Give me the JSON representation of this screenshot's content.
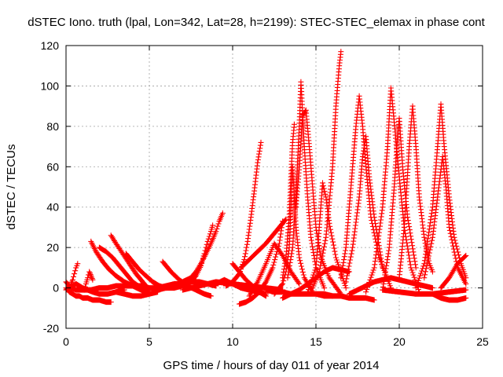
{
  "chart_data": {
    "type": "scatter",
    "title": "dSTEC Iono. truth (lpal, Lon=342, Lat=28, h=2199): STEC-STEC_elemax in phase cont",
    "xlabel": "GPS time / hours of day 011 of year 2014",
    "ylabel": "dSTEC  / TECUs",
    "xlim": [
      0,
      25
    ],
    "ylim": [
      -20,
      120
    ],
    "xticks": [
      0,
      5,
      10,
      15,
      20,
      25
    ],
    "yticks": [
      -20,
      0,
      20,
      40,
      60,
      80,
      100,
      120
    ],
    "grid": true,
    "marker": "plus",
    "color": "#ff0000",
    "series": [
      {
        "x": [
          0.0,
          0.2,
          0.4,
          0.6,
          0.8,
          1.0,
          1.3,
          1.6,
          2.0,
          2.4,
          2.7
        ],
        "values": [
          0,
          -2,
          -3,
          -4,
          -4,
          -5,
          -5,
          -6,
          -6,
          -7,
          -7
        ]
      },
      {
        "x": [
          0.0,
          0.3,
          0.6,
          1.0,
          1.5,
          2.0,
          2.5,
          3.0,
          3.5,
          4.0,
          4.5,
          5.0,
          5.5,
          6.0,
          6.5,
          7.0,
          7.5,
          8.0,
          8.5,
          9.0
        ],
        "values": [
          3,
          0,
          -1,
          -1,
          -1,
          0,
          0,
          1,
          1,
          1,
          1,
          0,
          0,
          1,
          2,
          2,
          3,
          3,
          2,
          1
        ]
      },
      {
        "x": [
          0.0,
          0.2,
          0.4,
          0.6,
          0.8,
          1.0,
          1.3,
          1.6,
          2.0,
          2.5,
          3.0,
          3.5
        ],
        "values": [
          -1,
          0,
          1,
          2,
          1,
          0,
          -1,
          -2,
          -3,
          -3,
          -2,
          -1
        ]
      },
      {
        "x": [
          0.3,
          0.4,
          0.5,
          0.6,
          0.7
        ],
        "values": [
          2,
          4,
          7,
          10,
          12
        ]
      },
      {
        "x": [
          1.1,
          1.2,
          1.3,
          1.4,
          1.5,
          1.6
        ],
        "values": [
          -1,
          2,
          5,
          8,
          6,
          4
        ]
      },
      {
        "x": [
          1.5,
          1.8,
          2.2,
          2.6,
          3.0,
          3.5,
          4.0,
          4.5,
          5.0
        ],
        "values": [
          23,
          18,
          13,
          9,
          6,
          3,
          1,
          -1,
          -3
        ]
      },
      {
        "x": [
          2.0,
          2.4,
          2.8,
          3.2,
          3.6,
          4.0,
          4.5,
          5.0
        ],
        "values": [
          20,
          18,
          15,
          11,
          7,
          3,
          0,
          -2
        ]
      },
      {
        "x": [
          2.7,
          3.0,
          3.4,
          3.8,
          4.2,
          4.6,
          5.0
        ],
        "values": [
          26,
          22,
          17,
          12,
          7,
          3,
          -1
        ]
      },
      {
        "x": [
          3.6,
          4.0,
          4.4,
          4.8,
          5.2,
          5.6,
          6.0,
          6.5
        ],
        "values": [
          17,
          13,
          9,
          6,
          3,
          1,
          0,
          0
        ]
      },
      {
        "x": [
          3.0,
          3.5,
          4.0,
          4.5,
          5.0,
          5.5
        ],
        "values": [
          -2,
          -3,
          -4,
          -4,
          -3,
          -2
        ]
      },
      {
        "x": [
          5.8,
          6.3,
          6.8,
          7.3,
          7.8,
          8.3,
          8.7
        ],
        "values": [
          13,
          8,
          4,
          1,
          -1,
          -3,
          -4
        ]
      },
      {
        "x": [
          5.5,
          6.0,
          6.5,
          7.0,
          7.5,
          7.8,
          8.1,
          8.4,
          8.7,
          9.0,
          9.2,
          9.4
        ],
        "values": [
          -1,
          0,
          1,
          3,
          5,
          8,
          12,
          17,
          22,
          28,
          33,
          37
        ]
      },
      {
        "x": [
          6.5,
          7.0,
          7.5,
          7.8,
          8.1,
          8.3,
          8.5,
          8.7,
          8.8
        ],
        "values": [
          0,
          1,
          3,
          6,
          11,
          17,
          23,
          28,
          31
        ]
      },
      {
        "x": [
          7.0,
          8.0,
          9.0,
          10.0,
          11.0,
          12.0,
          13.0
        ],
        "values": [
          -1,
          1,
          3,
          2,
          1,
          0,
          -1
        ]
      },
      {
        "x": [
          9.0,
          9.5,
          10.0,
          10.5,
          11.0,
          11.5,
          12.0
        ],
        "values": [
          2,
          4,
          2,
          0,
          -1,
          -2,
          -3
        ]
      },
      {
        "x": [
          9.6,
          10.0,
          10.4,
          10.7,
          10.9,
          11.1,
          11.3,
          11.5,
          11.7
        ],
        "values": [
          1,
          3,
          7,
          14,
          23,
          35,
          48,
          62,
          72
        ]
      },
      {
        "x": [
          10.0,
          10.4,
          10.8,
          11.2,
          11.6,
          12.0
        ],
        "values": [
          12,
          8,
          4,
          1,
          -2,
          -4
        ]
      },
      {
        "x": [
          10.4,
          10.8,
          11.2,
          11.6,
          12.0,
          12.4,
          12.8,
          13.0
        ],
        "values": [
          -8,
          -7,
          -5,
          -2,
          3,
          10,
          22,
          33
        ]
      },
      {
        "x": [
          10.5,
          11.0,
          11.5,
          12.0,
          12.5,
          13.0,
          13.2
        ],
        "values": [
          10,
          14,
          18,
          22,
          27,
          32,
          34
        ]
      },
      {
        "x": [
          11.0,
          11.5,
          12.0,
          12.5,
          13.0,
          13.5,
          14.0
        ],
        "values": [
          -4,
          3,
          12,
          22,
          16,
          8,
          2
        ]
      },
      {
        "x": [
          12.0,
          12.5,
          13.0,
          13.5,
          14.0,
          14.5,
          15.0,
          15.5,
          16.0
        ],
        "values": [
          -1,
          -2,
          -2,
          -3,
          -3,
          -3,
          -3,
          -4,
          -4
        ]
      },
      {
        "x": [
          12.5,
          13.0,
          13.2,
          13.4,
          13.5,
          13.6,
          13.8,
          14.0,
          14.3,
          14.8
        ],
        "values": [
          -3,
          2,
          8,
          20,
          40,
          60,
          30,
          15,
          5,
          -2
        ]
      },
      {
        "x": [
          13.0,
          13.2,
          13.4,
          13.5,
          13.6,
          13.7
        ],
        "values": [
          5,
          15,
          35,
          55,
          72,
          81
        ]
      },
      {
        "x": [
          13.3,
          13.6,
          13.8,
          14.0,
          14.1,
          14.3,
          14.5,
          14.7,
          15.0,
          15.5
        ],
        "values": [
          5,
          20,
          45,
          80,
          102,
          70,
          45,
          25,
          10,
          0
        ]
      },
      {
        "x": [
          13.8,
          14.0,
          14.2,
          14.4,
          14.6,
          14.8,
          15.0,
          15.3,
          15.8,
          16.5
        ],
        "values": [
          40,
          60,
          85,
          88,
          70,
          50,
          30,
          15,
          5,
          -3
        ]
      },
      {
        "x": [
          13.0,
          13.5,
          14.0,
          14.5,
          15.0,
          15.5,
          16.0,
          17.0
        ],
        "values": [
          -5,
          -3,
          -1,
          2,
          5,
          8,
          10,
          8
        ]
      },
      {
        "x": [
          14.5,
          15.0,
          15.2,
          15.4,
          15.6,
          15.8,
          16.2,
          16.8
        ],
        "values": [
          -2,
          10,
          30,
          52,
          45,
          32,
          15,
          0
        ]
      },
      {
        "x": [
          14.8,
          15.2,
          15.6,
          16.0,
          16.2,
          16.4,
          16.5
        ],
        "values": [
          0,
          8,
          25,
          60,
          90,
          110,
          117
        ]
      },
      {
        "x": [
          15.0,
          15.5,
          16.0,
          16.5,
          17.0,
          17.5,
          18.0,
          18.5
        ],
        "values": [
          -3,
          -3,
          -4,
          -4,
          -5,
          -5,
          -5,
          -6
        ]
      },
      {
        "x": [
          16.5,
          16.8,
          17.0,
          17.2,
          17.4,
          17.6,
          17.8,
          18.0,
          18.3,
          18.8,
          19.5
        ],
        "values": [
          5,
          20,
          40,
          60,
          80,
          95,
          80,
          60,
          35,
          15,
          0
        ]
      },
      {
        "x": [
          16.8,
          17.2,
          17.6,
          17.8,
          18.0,
          18.2,
          18.5,
          19.0
        ],
        "values": [
          3,
          20,
          45,
          65,
          75,
          55,
          35,
          10
        ]
      },
      {
        "x": [
          17.0,
          17.5,
          18.0,
          18.5,
          19.0,
          19.5,
          20.0,
          21.0,
          22.0
        ],
        "values": [
          -3,
          -1,
          1,
          3,
          4,
          5,
          4,
          2,
          0
        ]
      },
      {
        "x": [
          18.0,
          18.5,
          19.0,
          19.3,
          19.5,
          19.7,
          20.0,
          20.3,
          20.7,
          21.2
        ],
        "values": [
          -2,
          10,
          40,
          70,
          99,
          82,
          55,
          30,
          10,
          -2
        ]
      },
      {
        "x": [
          19.0,
          19.4,
          19.7,
          19.9,
          20.0,
          20.2,
          20.5,
          21.0
        ],
        "values": [
          -1,
          20,
          50,
          75,
          84,
          60,
          35,
          10
        ]
      },
      {
        "x": [
          20.0,
          20.3,
          20.6,
          20.8,
          21.0,
          21.2,
          21.5,
          21.8,
          22.0
        ],
        "values": [
          5,
          30,
          70,
          90,
          70,
          45,
          25,
          12,
          8
        ]
      },
      {
        "x": [
          19.0,
          20.0,
          21.0,
          22.0,
          23.0,
          24.0
        ],
        "values": [
          -1,
          -2,
          -3,
          -3,
          -2,
          -1
        ]
      },
      {
        "x": [
          21.0,
          21.5,
          22.0,
          22.3,
          22.5,
          22.7,
          23.0,
          23.3,
          23.7,
          24.0
        ],
        "values": [
          0,
          12,
          40,
          70,
          91,
          70,
          45,
          25,
          12,
          5
        ]
      },
      {
        "x": [
          21.5,
          22.0,
          22.3,
          22.6,
          22.8,
          23.0,
          23.5,
          24.0
        ],
        "values": [
          5,
          25,
          45,
          65,
          50,
          30,
          10,
          2
        ]
      },
      {
        "x": [
          22.0,
          22.5,
          23.0,
          23.5,
          24.0
        ],
        "values": [
          -3,
          -5,
          -6,
          -6,
          -5
        ]
      },
      {
        "x": [
          22.5,
          23.0,
          23.5,
          24.0
        ],
        "values": [
          0,
          5,
          12,
          16
        ]
      }
    ]
  }
}
